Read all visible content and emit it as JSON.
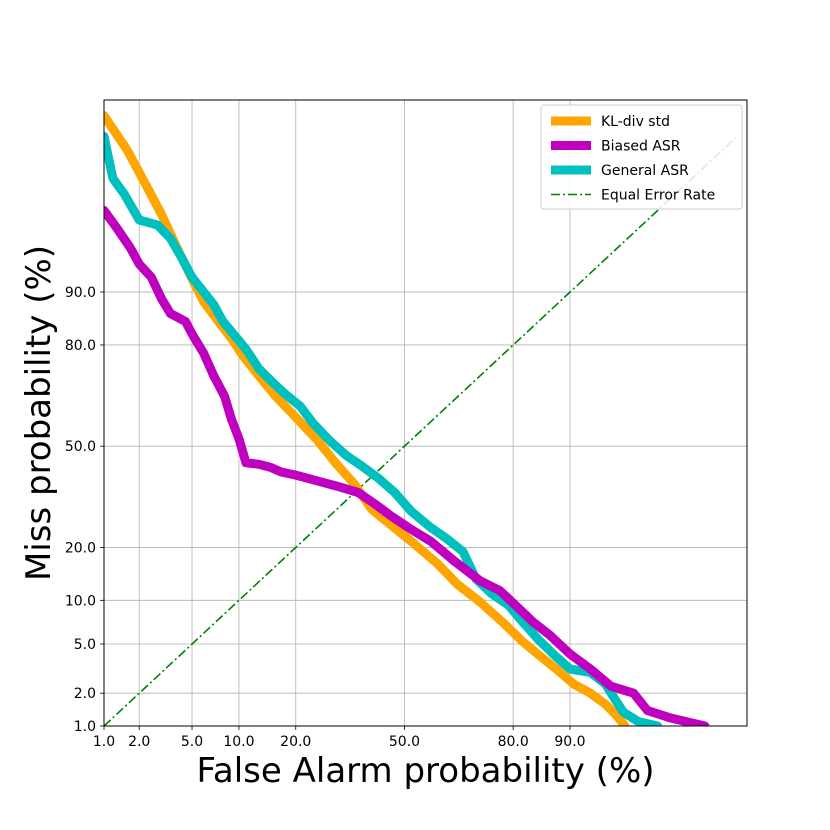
{
  "chart_data": {
    "type": "line",
    "title": "",
    "xlabel": "False Alarm probability (%)",
    "ylabel": "Miss probability (%)",
    "scale": "normal-deviate (DET)",
    "xlim": [
      1.0,
      99.6
    ],
    "ylim": [
      1.0,
      99.8
    ],
    "grid": true,
    "legend_position": "top-right",
    "x_ticks": [
      {
        "value": 1.0,
        "label": "1.0"
      },
      {
        "value": 2.0,
        "label": "2.0"
      },
      {
        "value": 5.0,
        "label": "5.0"
      },
      {
        "value": 10.0,
        "label": "10.0"
      },
      {
        "value": 20.0,
        "label": "20.0"
      },
      {
        "value": 50.0,
        "label": "50.0"
      },
      {
        "value": 80.0,
        "label": "80.0"
      },
      {
        "value": 90.0,
        "label": "90.0"
      }
    ],
    "y_ticks": [
      {
        "value": 1.0,
        "label": "1.0"
      },
      {
        "value": 2.0,
        "label": "2.0"
      },
      {
        "value": 5.0,
        "label": "5.0"
      },
      {
        "value": 10.0,
        "label": "10.0"
      },
      {
        "value": 20.0,
        "label": "20.0"
      },
      {
        "value": 50.0,
        "label": "50.0"
      },
      {
        "value": 80.0,
        "label": "80.0"
      },
      {
        "value": 90.0,
        "label": "90.0"
      }
    ],
    "series": [
      {
        "name": "KL-div std",
        "color": "#FFA500",
        "style": "solid",
        "points": [
          [
            1.0,
            99.7
          ],
          [
            1.6,
            99.3
          ],
          [
            2.2,
            98.6
          ],
          [
            3.0,
            97.3
          ],
          [
            4.0,
            94.8
          ],
          [
            5.0,
            91.8
          ],
          [
            6.0,
            88.5
          ],
          [
            7.5,
            85.0
          ],
          [
            9.0,
            81.5
          ],
          [
            10.5,
            77.5
          ],
          [
            13.0,
            72.0
          ],
          [
            16.0,
            66.0
          ],
          [
            20.0,
            59.5
          ],
          [
            25.0,
            52.0
          ],
          [
            30.0,
            44.0
          ],
          [
            35.0,
            37.5
          ],
          [
            40.0,
            30.0
          ],
          [
            46.0,
            25.5
          ],
          [
            52.0,
            21.5
          ],
          [
            60.0,
            16.5
          ],
          [
            66.0,
            12.5
          ],
          [
            72.0,
            9.8
          ],
          [
            78.0,
            7.0
          ],
          [
            82.0,
            5.2
          ],
          [
            85.5,
            4.0
          ],
          [
            88.0,
            3.2
          ],
          [
            90.5,
            2.4
          ],
          [
            92.5,
            2.0
          ],
          [
            94.0,
            1.6
          ],
          [
            95.0,
            1.25
          ],
          [
            95.6,
            1.0
          ]
        ]
      },
      {
        "name": "Biased ASR",
        "color": "#BF00BF",
        "style": "solid",
        "points": [
          [
            1.0,
            97.5
          ],
          [
            1.3,
            96.5
          ],
          [
            1.7,
            95.0
          ],
          [
            2.0,
            93.5
          ],
          [
            2.5,
            92.0
          ],
          [
            3.0,
            89.0
          ],
          [
            3.5,
            86.5
          ],
          [
            4.5,
            85.0
          ],
          [
            5.0,
            82.5
          ],
          [
            6.0,
            78.0
          ],
          [
            7.0,
            72.0
          ],
          [
            8.2,
            66.0
          ],
          [
            9.0,
            59.0
          ],
          [
            10.0,
            52.5
          ],
          [
            11.0,
            44.5
          ],
          [
            13.0,
            44.0
          ],
          [
            15.0,
            43.0
          ],
          [
            17.0,
            41.5
          ],
          [
            20.0,
            40.5
          ],
          [
            24.0,
            39.0
          ],
          [
            30.0,
            37.0
          ],
          [
            36.0,
            35.0
          ],
          [
            41.0,
            31.5
          ],
          [
            46.0,
            28.0
          ],
          [
            52.0,
            24.5
          ],
          [
            58.0,
            21.5
          ],
          [
            65.0,
            17.0
          ],
          [
            72.0,
            13.2
          ],
          [
            77.0,
            11.5
          ],
          [
            81.0,
            9.0
          ],
          [
            84.0,
            7.2
          ],
          [
            87.0,
            5.8
          ],
          [
            90.0,
            4.2
          ],
          [
            92.5,
            3.2
          ],
          [
            94.5,
            2.3
          ],
          [
            96.2,
            2.0
          ],
          [
            97.0,
            1.4
          ],
          [
            98.0,
            1.2
          ],
          [
            99.0,
            1.0
          ]
        ]
      },
      {
        "name": "General ASR",
        "color": "#00BFBF",
        "style": "solid",
        "points": [
          [
            1.0,
            99.5
          ],
          [
            1.2,
            98.7
          ],
          [
            1.5,
            98.2
          ],
          [
            2.0,
            97.0
          ],
          [
            2.8,
            96.7
          ],
          [
            3.5,
            95.8
          ],
          [
            4.2,
            94.2
          ],
          [
            5.0,
            92.0
          ],
          [
            6.0,
            90.0
          ],
          [
            7.0,
            88.0
          ],
          [
            8.0,
            85.0
          ],
          [
            9.5,
            82.0
          ],
          [
            11.0,
            79.0
          ],
          [
            13.0,
            74.0
          ],
          [
            15.5,
            70.0
          ],
          [
            18.0,
            66.5
          ],
          [
            21.0,
            63.0
          ],
          [
            24.0,
            57.5
          ],
          [
            28.0,
            52.0
          ],
          [
            32.5,
            47.0
          ],
          [
            37.0,
            43.5
          ],
          [
            42.0,
            39.5
          ],
          [
            47.0,
            35.0
          ],
          [
            52.0,
            29.5
          ],
          [
            58.0,
            25.0
          ],
          [
            63.0,
            22.0
          ],
          [
            67.5,
            19.0
          ],
          [
            71.0,
            13.5
          ],
          [
            75.0,
            11.0
          ],
          [
            79.0,
            9.3
          ],
          [
            82.0,
            7.2
          ],
          [
            85.0,
            5.4
          ],
          [
            88.0,
            4.0
          ],
          [
            90.0,
            3.2
          ],
          [
            92.5,
            3.0
          ],
          [
            94.0,
            2.4
          ],
          [
            94.8,
            1.8
          ],
          [
            95.5,
            1.35
          ],
          [
            96.5,
            1.1
          ],
          [
            97.5,
            1.0
          ]
        ]
      },
      {
        "name": "Equal Error Rate",
        "color": "#008000",
        "style": "dash-dot",
        "points": [
          [
            1.0,
            1.0
          ],
          [
            99.5,
            99.5
          ]
        ]
      }
    ]
  }
}
